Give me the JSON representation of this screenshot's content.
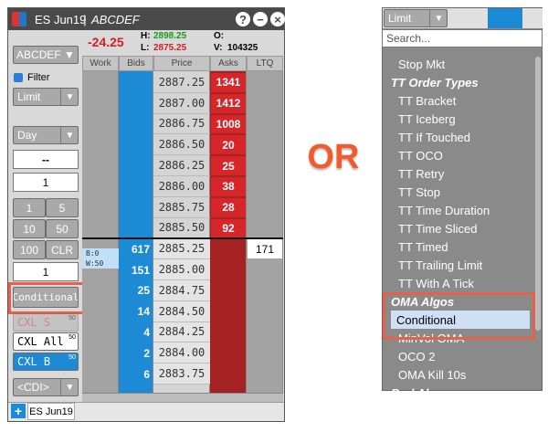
{
  "window": {
    "symbol": "ES Jun19",
    "separator": "|",
    "account": "ABCDEF",
    "icons": [
      "?",
      "−",
      "×"
    ]
  },
  "summary": {
    "change": "-24.25",
    "high_label": "H:",
    "high": "2898.25",
    "low_label": "L:",
    "low": "2875.25",
    "open_label": "O:",
    "volume_label": "V:",
    "volume": "104325"
  },
  "controls": {
    "account": "ABCDEF ▼",
    "filter": "Filter",
    "order_type": "Limit",
    "tif": "Day",
    "price": "--",
    "quantity": "1",
    "qty_buttons": [
      "1",
      "5",
      "10",
      "50",
      "100",
      "CLR"
    ],
    "quantity2": "1",
    "working": [
      "B:0",
      "W:50"
    ],
    "conditional": "Conditional",
    "cancel_sell": "CXL S",
    "cancel_sell_count": "50",
    "cancel_all": "CXL All",
    "cancel_all_count": "50",
    "cancel_buy": "CXL B",
    "cancel_buy_count": "50",
    "cdi": "<CDI>"
  },
  "ladder": {
    "columns": [
      "Work",
      "Bids",
      "Price",
      "Asks",
      "LTQ"
    ],
    "rows": [
      {
        "price": "2887.25",
        "asks": 1341
      },
      {
        "price": "2887.00",
        "asks": 1412
      },
      {
        "price": "2886.75",
        "asks": 1008
      },
      {
        "price": "2886.50",
        "asks": 20
      },
      {
        "price": "2886.25",
        "asks": 25
      },
      {
        "price": "2886.00",
        "asks": 38
      },
      {
        "price": "2885.75",
        "asks": 28
      },
      {
        "price": "2885.50",
        "asks": 92
      },
      {
        "price": "2885.25",
        "bids": 617,
        "ltq": 171
      },
      {
        "price": "2885.00",
        "bids": 151
      },
      {
        "price": "2884.75",
        "bids": 25
      },
      {
        "price": "2884.50",
        "bids": 14
      },
      {
        "price": "2884.25",
        "bids": 4
      },
      {
        "price": "2884.00",
        "bids": 2
      },
      {
        "price": "2883.75",
        "bids": 6
      }
    ]
  },
  "footer": {
    "add": "+",
    "tab": "ES Jun19"
  },
  "separator_text": "OR",
  "dropdown": {
    "selected": "Limit",
    "search_placeholder": "Search...",
    "items": [
      {
        "label": "Stop Mkt"
      },
      {
        "label": "TT Order Types",
        "header": true
      },
      {
        "label": "TT Bracket"
      },
      {
        "label": "TT Iceberg"
      },
      {
        "label": "TT If Touched"
      },
      {
        "label": "TT OCO"
      },
      {
        "label": "TT Retry"
      },
      {
        "label": "TT Stop"
      },
      {
        "label": "TT Time Duration"
      },
      {
        "label": "TT Time Sliced"
      },
      {
        "label": "TT Timed"
      },
      {
        "label": "TT Trailing Limit"
      },
      {
        "label": "TT With A Tick"
      },
      {
        "label": "OMA Algos",
        "header": true
      },
      {
        "label": "Conditional",
        "selected": true
      },
      {
        "label": "MinVol OMA"
      },
      {
        "label": "OCO 2"
      },
      {
        "label": "OMA Kill 10s"
      },
      {
        "label": "Bnd Algo",
        "header": true
      }
    ]
  }
}
